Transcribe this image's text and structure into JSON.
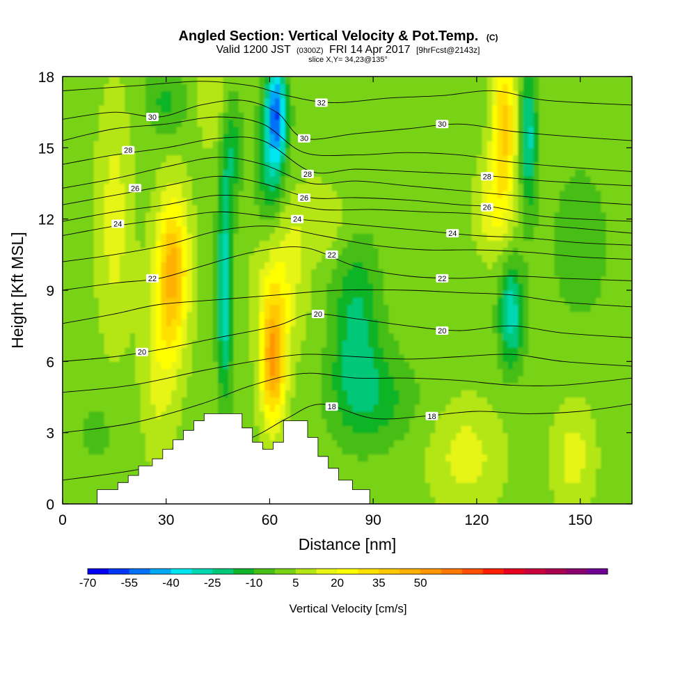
{
  "chart_data": {
    "type": "heatmap",
    "title": "Angled Section: Vertical Velocity & Pot.Temp.",
    "title_mark": "(C)",
    "subtitle_parts": [
      "Valid 1200 JST",
      "(0300Z)",
      "FRI 14 Apr 2017",
      "[9hrFcst@2143z]"
    ],
    "slice_label": "slice X,Y= 34,23@135°",
    "xlabel": "Distance [nm]",
    "ylabel": "Height [Kft MSL]",
    "xlim": [
      0,
      165
    ],
    "ylim": [
      0,
      18
    ],
    "x_ticks": [
      "0",
      "30",
      "60",
      "90",
      "120",
      "150"
    ],
    "y_ticks": [
      "0",
      "3",
      "6",
      "9",
      "12",
      "15",
      "18"
    ],
    "colorbar": {
      "label": "Vertical Velocity [cm/s]",
      "tick_labels": [
        "-70",
        "-55",
        "-40",
        "-25",
        "-10",
        "5",
        "20",
        "35",
        "50"
      ],
      "colors": [
        "#0000f0",
        "#0036f5",
        "#0072f5",
        "#00a8f5",
        "#00e6f0",
        "#00d8b4",
        "#00c878",
        "#10b428",
        "#46be14",
        "#78d214",
        "#b4e614",
        "#e6f514",
        "#ffff00",
        "#ffe100",
        "#ffc800",
        "#ffb000",
        "#ff9600",
        "#ff7800",
        "#ff5000",
        "#ff1e00",
        "#e6001e",
        "#c8003c",
        "#aa0050",
        "#8c006e",
        "#6e0096"
      ]
    },
    "velocity_features": [
      {
        "x": 32,
        "y": 9.8,
        "sx": 4.5,
        "sy": 3.2,
        "w": 42
      },
      {
        "x": 28,
        "y": 6,
        "sx": 5,
        "sy": 4,
        "w": 14
      },
      {
        "x": 61,
        "y": 6,
        "sx": 3.5,
        "sy": 2.6,
        "w": 48
      },
      {
        "x": 63,
        "y": 9.5,
        "sx": 7,
        "sy": 3,
        "w": 18
      },
      {
        "x": 15,
        "y": 12,
        "sx": 5,
        "sy": 5,
        "w": 14
      },
      {
        "x": 128,
        "y": 16,
        "sx": 3.5,
        "sy": 3,
        "w": 36
      },
      {
        "x": 125,
        "y": 12.5,
        "sx": 5,
        "sy": 2,
        "w": 18
      },
      {
        "x": 117,
        "y": 2,
        "sx": 10,
        "sy": 2.2,
        "w": 14
      },
      {
        "x": 148,
        "y": 2,
        "sx": 6,
        "sy": 2.2,
        "w": 14
      },
      {
        "x": 44,
        "y": 17,
        "sx": 5,
        "sy": 2,
        "w": 10
      },
      {
        "x": 75,
        "y": 12,
        "sx": 8,
        "sy": 1.5,
        "w": 10
      },
      {
        "x": 47,
        "y": 9,
        "sx": 2.2,
        "sy": 4.5,
        "w": -34
      },
      {
        "x": 49,
        "y": 15,
        "sx": 3,
        "sy": 2.5,
        "w": -18
      },
      {
        "x": 62,
        "y": 16.5,
        "sx": 3,
        "sy": 2.2,
        "w": -50
      },
      {
        "x": 60,
        "y": 14,
        "sx": 4,
        "sy": 3,
        "w": -20
      },
      {
        "x": 85,
        "y": 7.5,
        "sx": 7,
        "sy": 3.5,
        "w": -22
      },
      {
        "x": 90,
        "y": 4.5,
        "sx": 12,
        "sy": 2,
        "w": -16
      },
      {
        "x": 130,
        "y": 8,
        "sx": 3.5,
        "sy": 2.2,
        "w": -32
      },
      {
        "x": 135,
        "y": 15.5,
        "sx": 2.5,
        "sy": 3,
        "w": -30
      },
      {
        "x": 150,
        "y": 11,
        "sx": 10,
        "sy": 4,
        "w": -8
      },
      {
        "x": 30,
        "y": 17,
        "sx": 6,
        "sy": 1.5,
        "w": -14
      },
      {
        "x": 10,
        "y": 3,
        "sx": 8,
        "sy": 2,
        "w": -6
      }
    ],
    "theta_contours": [
      {
        "label": "18",
        "label_at": [
          [
            78,
            4.1
          ],
          [
            107,
            3.7
          ]
        ],
        "points": [
          [
            0,
            1.0
          ],
          [
            20,
            1.4
          ],
          [
            40,
            2.0
          ],
          [
            55,
            2.8
          ],
          [
            65,
            3.6
          ],
          [
            75,
            4.2
          ],
          [
            90,
            3.6
          ],
          [
            105,
            3.7
          ],
          [
            120,
            3.9
          ],
          [
            135,
            3.8
          ],
          [
            150,
            3.9
          ],
          [
            165,
            4.2
          ]
        ]
      },
      {
        "label": "",
        "label_at": [],
        "points": [
          [
            0,
            3.0
          ],
          [
            20,
            3.4
          ],
          [
            40,
            4.2
          ],
          [
            55,
            5.0
          ],
          [
            70,
            5.5
          ],
          [
            85,
            5.3
          ],
          [
            100,
            5.3
          ],
          [
            115,
            5.2
          ],
          [
            130,
            5.0
          ],
          [
            145,
            5.0
          ],
          [
            165,
            5.3
          ]
        ]
      },
      {
        "label": "",
        "label_at": [],
        "points": [
          [
            0,
            4.7
          ],
          [
            20,
            5.0
          ],
          [
            40,
            5.6
          ],
          [
            55,
            6.0
          ],
          [
            70,
            6.3
          ],
          [
            85,
            6.2
          ],
          [
            100,
            6.1
          ],
          [
            115,
            6.2
          ],
          [
            130,
            6.3
          ],
          [
            145,
            6.0
          ],
          [
            165,
            5.8
          ]
        ]
      },
      {
        "label": "20",
        "label_at": [
          [
            23,
            6.4
          ],
          [
            74,
            8.0
          ],
          [
            110,
            7.3
          ]
        ],
        "points": [
          [
            0,
            6.0
          ],
          [
            15,
            6.2
          ],
          [
            28,
            6.5
          ],
          [
            45,
            7.0
          ],
          [
            62,
            7.5
          ],
          [
            72,
            8.0
          ],
          [
            85,
            7.8
          ],
          [
            100,
            7.5
          ],
          [
            115,
            7.3
          ],
          [
            130,
            7.5
          ],
          [
            145,
            7.2
          ],
          [
            165,
            7.0
          ]
        ]
      },
      {
        "label": "",
        "label_at": [],
        "points": [
          [
            0,
            7.6
          ],
          [
            15,
            8.0
          ],
          [
            28,
            8.4
          ],
          [
            45,
            8.6
          ],
          [
            62,
            8.8
          ],
          [
            80,
            9.0
          ],
          [
            100,
            9.0
          ],
          [
            115,
            8.9
          ],
          [
            130,
            8.8
          ],
          [
            145,
            8.5
          ],
          [
            165,
            8.3
          ]
        ]
      },
      {
        "label": "22",
        "label_at": [
          [
            26,
            9.5
          ],
          [
            78,
            10.5
          ],
          [
            110,
            9.5
          ]
        ],
        "points": [
          [
            0,
            9.0
          ],
          [
            15,
            9.3
          ],
          [
            28,
            9.5
          ],
          [
            40,
            10.0
          ],
          [
            55,
            10.6
          ],
          [
            70,
            10.8
          ],
          [
            85,
            10.0
          ],
          [
            100,
            9.6
          ],
          [
            115,
            9.5
          ],
          [
            130,
            9.6
          ],
          [
            145,
            9.5
          ],
          [
            165,
            9.4
          ]
        ]
      },
      {
        "label": "",
        "label_at": [],
        "points": [
          [
            0,
            10.2
          ],
          [
            15,
            10.5
          ],
          [
            30,
            10.9
          ],
          [
            45,
            11.5
          ],
          [
            60,
            11.7
          ],
          [
            75,
            11.3
          ],
          [
            90,
            10.9
          ],
          [
            105,
            10.7
          ],
          [
            120,
            10.7
          ],
          [
            135,
            10.6
          ],
          [
            150,
            10.4
          ],
          [
            165,
            10.3
          ]
        ]
      },
      {
        "label": "24",
        "label_at": [
          [
            16,
            11.8
          ],
          [
            68,
            12.0
          ],
          [
            113,
            11.4
          ]
        ],
        "points": [
          [
            0,
            11.3
          ],
          [
            15,
            11.7
          ],
          [
            30,
            12.0
          ],
          [
            45,
            12.3
          ],
          [
            60,
            12.1
          ],
          [
            75,
            11.9
          ],
          [
            90,
            11.7
          ],
          [
            105,
            11.5
          ],
          [
            120,
            11.3
          ],
          [
            135,
            11.2
          ],
          [
            150,
            11.0
          ],
          [
            165,
            10.9
          ]
        ]
      },
      {
        "label": "",
        "label_at": [],
        "points": [
          [
            0,
            11.9
          ],
          [
            15,
            12.3
          ],
          [
            30,
            12.6
          ],
          [
            45,
            13.0
          ],
          [
            60,
            12.8
          ],
          [
            75,
            12.4
          ],
          [
            90,
            12.4
          ],
          [
            105,
            12.3
          ],
          [
            120,
            12.2
          ],
          [
            135,
            11.8
          ],
          [
            150,
            11.6
          ],
          [
            165,
            11.4
          ]
        ]
      },
      {
        "label": "26",
        "label_at": [
          [
            21,
            13.3
          ],
          [
            70,
            12.9
          ],
          [
            123,
            12.5
          ]
        ],
        "points": [
          [
            0,
            12.6
          ],
          [
            15,
            13.0
          ],
          [
            30,
            13.4
          ],
          [
            45,
            13.8
          ],
          [
            58,
            13.5
          ],
          [
            72,
            12.9
          ],
          [
            85,
            12.9
          ],
          [
            100,
            12.8
          ],
          [
            115,
            12.6
          ],
          [
            125,
            12.5
          ],
          [
            140,
            12.1
          ],
          [
            165,
            11.9
          ]
        ]
      },
      {
        "label": "",
        "label_at": [],
        "points": [
          [
            0,
            13.3
          ],
          [
            15,
            13.7
          ],
          [
            30,
            14.2
          ],
          [
            45,
            14.6
          ],
          [
            58,
            14.3
          ],
          [
            72,
            13.5
          ],
          [
            85,
            13.6
          ],
          [
            100,
            13.4
          ],
          [
            115,
            13.2
          ],
          [
            130,
            13.0
          ],
          [
            145,
            12.8
          ],
          [
            165,
            12.6
          ]
        ]
      },
      {
        "label": "28",
        "label_at": [
          [
            19,
            14.9
          ],
          [
            71,
            13.9
          ],
          [
            123,
            13.8
          ]
        ],
        "points": [
          [
            0,
            14.3
          ],
          [
            15,
            14.7
          ],
          [
            30,
            15.0
          ],
          [
            45,
            15.4
          ],
          [
            58,
            15.3
          ],
          [
            72,
            14.0
          ],
          [
            85,
            14.1
          ],
          [
            100,
            14.0
          ],
          [
            115,
            13.9
          ],
          [
            125,
            13.8
          ],
          [
            140,
            13.6
          ],
          [
            165,
            13.4
          ]
        ]
      },
      {
        "label": "",
        "label_at": [],
        "points": [
          [
            0,
            15.3
          ],
          [
            15,
            15.8
          ],
          [
            30,
            16.0
          ],
          [
            45,
            16.3
          ],
          [
            58,
            16.0
          ],
          [
            70,
            14.8
          ],
          [
            85,
            14.7
          ],
          [
            100,
            14.8
          ],
          [
            115,
            14.7
          ],
          [
            130,
            14.4
          ],
          [
            145,
            14.2
          ],
          [
            165,
            14.0
          ]
        ]
      },
      {
        "label": "30",
        "label_at": [
          [
            26,
            16.3
          ],
          [
            70,
            15.4
          ],
          [
            110,
            16.0
          ]
        ],
        "points": [
          [
            0,
            16.2
          ],
          [
            15,
            16.5
          ],
          [
            28,
            16.3
          ],
          [
            40,
            16.8
          ],
          [
            52,
            17.0
          ],
          [
            62,
            16.5
          ],
          [
            70,
            15.4
          ],
          [
            85,
            15.6
          ],
          [
            100,
            15.8
          ],
          [
            115,
            16.0
          ],
          [
            130,
            15.7
          ],
          [
            145,
            15.5
          ],
          [
            165,
            15.3
          ]
        ]
      },
      {
        "label": "32",
        "label_at": [
          [
            75,
            16.9
          ]
        ],
        "points": [
          [
            0,
            17.4
          ],
          [
            20,
            17.6
          ],
          [
            40,
            17.8
          ],
          [
            55,
            17.6
          ],
          [
            65,
            17.2
          ],
          [
            78,
            16.9
          ],
          [
            95,
            17.1
          ],
          [
            110,
            17.2
          ],
          [
            125,
            17.4
          ],
          [
            140,
            17.0
          ],
          [
            165,
            16.8
          ]
        ]
      }
    ],
    "terrain": [
      [
        0,
        0
      ],
      [
        10,
        0
      ],
      [
        10,
        0.6
      ],
      [
        16,
        0.6
      ],
      [
        16,
        0.9
      ],
      [
        19,
        0.9
      ],
      [
        19,
        1.2
      ],
      [
        22,
        1.2
      ],
      [
        22,
        1.6
      ],
      [
        26,
        1.6
      ],
      [
        26,
        1.9
      ],
      [
        29,
        1.9
      ],
      [
        29,
        2.3
      ],
      [
        32,
        2.3
      ],
      [
        32,
        2.7
      ],
      [
        35,
        2.7
      ],
      [
        35,
        3.1
      ],
      [
        38,
        3.1
      ],
      [
        38,
        3.5
      ],
      [
        41,
        3.5
      ],
      [
        41,
        3.8
      ],
      [
        52,
        3.8
      ],
      [
        52,
        3.2
      ],
      [
        55,
        3.2
      ],
      [
        55,
        2.6
      ],
      [
        58,
        2.6
      ],
      [
        58,
        2.3
      ],
      [
        61,
        2.3
      ],
      [
        61,
        2.6
      ],
      [
        64,
        2.6
      ],
      [
        64,
        3.5
      ],
      [
        71,
        3.5
      ],
      [
        71,
        2.8
      ],
      [
        74,
        2.8
      ],
      [
        74,
        2.0
      ],
      [
        77,
        2.0
      ],
      [
        77,
        1.5
      ],
      [
        80,
        1.5
      ],
      [
        80,
        1.0
      ],
      [
        84,
        1.0
      ],
      [
        84,
        0.6
      ],
      [
        89,
        0.6
      ],
      [
        89,
        0
      ],
      [
        165,
        0
      ]
    ]
  }
}
